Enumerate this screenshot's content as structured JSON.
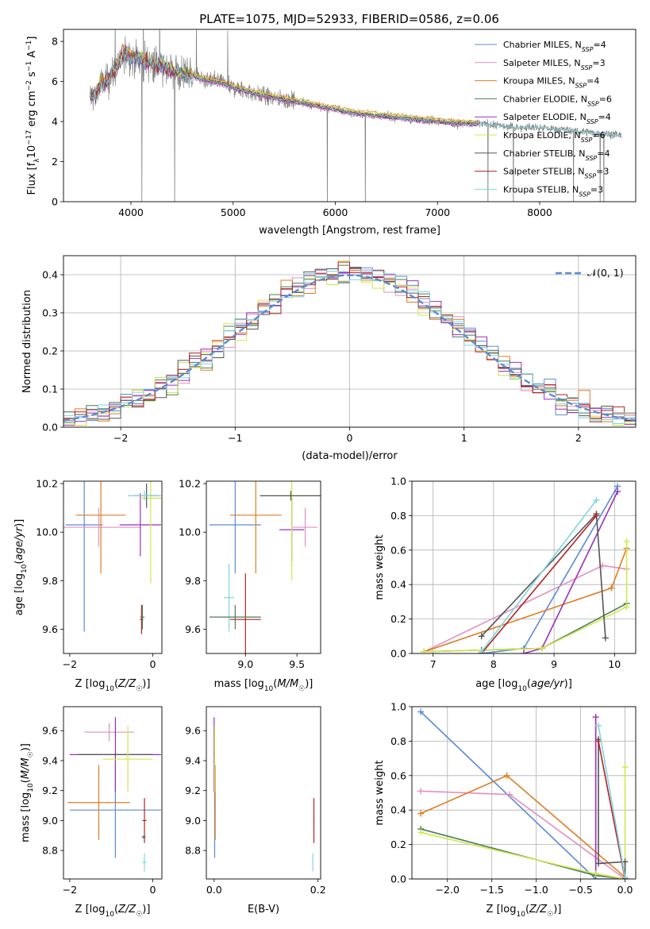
{
  "figure_title": "PLATE=1075, MJD=52933, FIBERID=0586, z=0.06",
  "models": [
    {
      "name": "Chabrier MILES",
      "nssp": "4",
      "color": "#5b8bd6"
    },
    {
      "name": "Salpeter MILES",
      "nssp": "3",
      "color": "#e38fbf"
    },
    {
      "name": "Kroupa MILES",
      "nssp": "4",
      "color": "#e07c22"
    },
    {
      "name": "Chabrier ELODIE",
      "nssp": "6",
      "color": "#4a7c59"
    },
    {
      "name": "Salpeter ELODIE",
      "nssp": "4",
      "color": "#9b30b8"
    },
    {
      "name": "Kroupa ELODIE",
      "nssp": "6",
      "color": "#cfe84a"
    },
    {
      "name": "Chabrier STELIB",
      "nssp": "4",
      "color": "#555555"
    },
    {
      "name": "Salpeter STELIB",
      "nssp": "3",
      "color": "#b22222"
    },
    {
      "name": "Kroupa STELIB",
      "nssp": "3",
      "color": "#7fd6e0"
    }
  ],
  "chart_data": [
    {
      "type": "line",
      "id": "spectrum",
      "xlabel": "wavelength [Angstrom, rest frame]",
      "ylabel": "Flux [f_λ 10^-17 erg cm^-2 s^-1 A^-1]",
      "xlim": [
        3340,
        8940
      ],
      "ylim": [
        0,
        8.6
      ],
      "xticks": [
        4000,
        5000,
        6000,
        7000,
        8000
      ],
      "yticks": [
        0,
        2,
        4,
        6,
        8
      ],
      "legend_position": "top-right",
      "data_color": "#808080",
      "continuum": {
        "x": [
          3600,
          3650,
          3700,
          3750,
          3800,
          3850,
          3900,
          3950,
          4000,
          4100,
          4200,
          4300,
          4400,
          4500,
          4600,
          4700,
          4800,
          4900,
          5000,
          5200,
          5400,
          5600,
          5800,
          6000,
          6200,
          6400,
          6600,
          6800,
          7000,
          7200,
          7400,
          7600,
          7800,
          8000,
          8200,
          8400,
          8600,
          8800
        ],
        "y": [
          5.3,
          5.3,
          5.8,
          5.9,
          6.3,
          6.6,
          7.1,
          7.5,
          7.2,
          7.1,
          6.9,
          6.8,
          6.5,
          6.4,
          6.3,
          6.1,
          6.0,
          5.9,
          5.7,
          5.4,
          5.2,
          5.0,
          4.8,
          4.6,
          4.4,
          4.3,
          4.2,
          4.1,
          4.0,
          3.9,
          3.9,
          3.8,
          3.7,
          3.7,
          3.6,
          3.5,
          3.4,
          3.3
        ]
      },
      "model_spectrum_xrange": [
        3600,
        8800
      ],
      "model_spectrum_color": "#7fd6e0"
    },
    {
      "type": "histogram",
      "id": "residuals",
      "xlabel": "(data-model)/error",
      "ylabel": "Normed distribution",
      "xlim": [
        -2.5,
        2.5
      ],
      "ylim": [
        0,
        0.45
      ],
      "xticks": [
        -2,
        -1,
        0,
        1,
        2
      ],
      "yticks": [
        0.0,
        0.1,
        0.2,
        0.3,
        0.4
      ],
      "grid": true,
      "legend": "𝒩(0, 1)",
      "legend_position": "top-right",
      "normal_curve_color": "#5b8bd6",
      "bin_width": 0.1
    },
    {
      "type": "errorbar",
      "id": "age_vs_Z",
      "xlabel": "Z [log10(Z/Z☉)]",
      "ylabel": "age [log10(age/yr)]",
      "xlim": [
        -2.15,
        0.22
      ],
      "ylim": [
        9.5,
        10.21
      ],
      "xticks": [
        -2,
        0
      ],
      "yticks": [
        9.6,
        9.8,
        10.0,
        10.2
      ],
      "points": [
        {
          "model": "Chabrier MILES",
          "x": -1.65,
          "xerr": 0.45,
          "y": 10.03,
          "yerr": 0.44
        },
        {
          "model": "Salpeter MILES",
          "x": -1.3,
          "xerr": 1.0,
          "y": 10.02,
          "yerr": 0.08
        },
        {
          "model": "Kroupa MILES",
          "x": -1.25,
          "xerr": 0.6,
          "y": 10.07,
          "yerr": 0.24
        },
        {
          "model": "Salpeter ELODIE",
          "x": -0.3,
          "xerr": 0.5,
          "y": 10.03,
          "yerr": 0.13
        },
        {
          "model": "Kroupa ELODIE",
          "x": -0.05,
          "xerr": 0.25,
          "y": 10.14,
          "yerr": 0.35
        },
        {
          "model": "Chabrier STELIB",
          "x": -0.15,
          "xerr": 0.3,
          "y": 10.15,
          "yerr": 0.05
        },
        {
          "model": "Kroupa STELIB",
          "x": -0.2,
          "xerr": 0.4,
          "y": 10.15,
          "yerr": 0.02
        },
        {
          "model": "Salpeter STELIB",
          "x": -0.27,
          "xerr": 0.04,
          "y": 9.64,
          "yerr": 0.06
        },
        {
          "model": "Chabrier ELODIE",
          "x": -0.25,
          "xerr": 0.05,
          "y": 9.65,
          "yerr": 0.05
        }
      ]
    },
    {
      "type": "errorbar",
      "id": "age_vs_mass",
      "xlabel": "mass [log10(M/M☉)]",
      "ylabel": "",
      "xlim": [
        8.62,
        9.73
      ],
      "ylim": [
        9.5,
        10.21
      ],
      "xticks": [
        9.0,
        9.5
      ],
      "yticks": [
        9.6,
        9.8,
        10.0,
        10.2
      ],
      "points": [
        {
          "model": "Chabrier MILES",
          "x": 8.9,
          "xerr": 0.25,
          "y": 10.03,
          "yerr": 0.2
        },
        {
          "model": "Kroupa MILES",
          "x": 9.1,
          "xerr": 0.25,
          "y": 10.07,
          "yerr": 0.24
        },
        {
          "model": "Salpeter MILES",
          "x": 9.58,
          "xerr": 0.12,
          "y": 10.02,
          "yerr": 0.08
        },
        {
          "model": "Salpeter ELODIE",
          "x": 9.45,
          "xerr": 0.12,
          "y": 10.01,
          "yerr": 0.13
        },
        {
          "model": "Kroupa ELODIE",
          "x": 9.45,
          "xerr": 0.3,
          "y": 10.15,
          "yerr": 0.35
        },
        {
          "model": "Chabrier STELIB",
          "x": 9.44,
          "xerr": 0.3,
          "y": 10.15,
          "yerr": 0.02
        },
        {
          "model": "Kroupa STELIB",
          "x": 8.84,
          "xerr": 0.05,
          "y": 9.73,
          "yerr": 0.14
        },
        {
          "model": "Salpeter STELIB",
          "x": 9.0,
          "xerr": 0.15,
          "y": 9.64,
          "yerr": 0.19
        },
        {
          "model": "Chabrier ELODIE",
          "x": 8.9,
          "xerr": 0.25,
          "y": 9.65,
          "yerr": 0.05
        }
      ]
    },
    {
      "type": "line",
      "id": "massweight_vs_age",
      "xlabel": "age [log10(age/yr)]",
      "ylabel": "mass weight",
      "xlim": [
        6.65,
        10.35
      ],
      "ylim": [
        0,
        1.0
      ],
      "xticks": [
        7,
        8,
        9,
        10
      ],
      "yticks": [
        0.0,
        0.2,
        0.4,
        0.6,
        0.8,
        1.0
      ],
      "grid": true,
      "series": [
        {
          "model": "Chabrier MILES",
          "x": [
            7.8,
            8.5,
            10.05
          ],
          "y": [
            0.0,
            0.03,
            0.97
          ]
        },
        {
          "model": "Salpeter MILES",
          "x": [
            6.85,
            9.8,
            10.2
          ],
          "y": [
            0.01,
            0.51,
            0.49
          ]
        },
        {
          "model": "Kroupa MILES",
          "x": [
            6.85,
            9.95,
            10.2
          ],
          "y": [
            0.01,
            0.38,
            0.61
          ]
        },
        {
          "model": "Chabrier ELODIE",
          "x": [
            6.85,
            7.8,
            8.8,
            10.2
          ],
          "y": [
            0.01,
            0.02,
            0.03,
            0.29
          ]
        },
        {
          "model": "Salpeter ELODIE",
          "x": [
            8.5,
            8.8,
            10.05
          ],
          "y": [
            0.0,
            0.03,
            0.94
          ]
        },
        {
          "model": "Kroupa ELODIE",
          "x": [
            6.85,
            8.8,
            10.2,
            10.2
          ],
          "y": [
            0.01,
            0.03,
            0.27,
            0.65
          ]
        },
        {
          "model": "Chabrier STELIB",
          "x": [
            7.8,
            9.7,
            9.85
          ],
          "y": [
            0.1,
            0.81,
            0.09
          ]
        },
        {
          "model": "Salpeter STELIB",
          "x": [
            7.8,
            9.7
          ],
          "y": [
            0.0,
            0.8
          ]
        },
        {
          "model": "Kroupa STELIB",
          "x": [
            7.8,
            9.7
          ],
          "y": [
            0.01,
            0.89
          ]
        }
      ]
    },
    {
      "type": "errorbar",
      "id": "mass_vs_Z",
      "xlabel": "Z [log10(Z/Z☉)]",
      "ylabel": "mass [log10(M/M☉)]",
      "xlim": [
        -2.15,
        0.22
      ],
      "ylim": [
        8.61,
        9.76
      ],
      "xticks": [
        -2,
        0
      ],
      "yticks": [
        8.8,
        9.0,
        9.2,
        9.4,
        9.6
      ],
      "points": [
        {
          "model": "Salpeter MILES",
          "x": -1.05,
          "xerr": 0.6,
          "y": 9.59,
          "yerr": 0.06
        },
        {
          "model": "Chabrier MILES",
          "x": -0.9,
          "xerr": 1.1,
          "y": 9.07,
          "yerr": 0.32
        },
        {
          "model": "Kroupa MILES",
          "x": -1.3,
          "xerr": 0.75,
          "y": 9.12,
          "yerr": 0.25
        },
        {
          "model": "Salpeter ELODIE",
          "x": -0.9,
          "xerr": 1.1,
          "y": 9.44,
          "yerr": 0.25
        },
        {
          "model": "Chabrier STELIB",
          "x": -0.9,
          "xerr": 0.9,
          "y": 9.44,
          "yerr": 0.01
        },
        {
          "model": "Kroupa ELODIE",
          "x": -0.6,
          "xerr": 0.6,
          "y": 9.41,
          "yerr": 0.22
        },
        {
          "model": "Kroupa STELIB",
          "x": -0.2,
          "xerr": 0.05,
          "y": 8.72,
          "yerr": 0.06
        },
        {
          "model": "Salpeter STELIB",
          "x": -0.2,
          "xerr": 0.05,
          "y": 9.0,
          "yerr": 0.15
        },
        {
          "model": "Chabrier ELODIE",
          "x": -0.22,
          "xerr": 0.05,
          "y": 8.89,
          "yerr": 0.01
        }
      ]
    },
    {
      "type": "errorbar",
      "id": "mass_vs_EBV",
      "xlabel": "E(B-V)",
      "ylabel": "",
      "xlim": [
        -0.015,
        0.205
      ],
      "ylim": [
        8.61,
        9.76
      ],
      "xticks": [
        0.0,
        0.2
      ],
      "yticks": [
        8.8,
        9.0,
        9.2,
        9.4,
        9.6
      ],
      "points": [
        {
          "model": "Chabrier MILES",
          "x": 0.001,
          "xerr": 0.001,
          "y": 9.07,
          "yerr": 0.32
        },
        {
          "model": "Kroupa MILES",
          "x": 0.002,
          "xerr": 0.001,
          "y": 9.12,
          "yerr": 0.25
        },
        {
          "model": "Salpeter ELODIE",
          "x": 0.0,
          "xerr": 0.001,
          "y": 9.44,
          "yerr": 0.25
        },
        {
          "model": "Kroupa ELODIE",
          "x": 0.001,
          "xerr": 0.001,
          "y": 9.41,
          "yerr": 0.22
        },
        {
          "model": "Salpeter STELIB",
          "x": 0.192,
          "xerr": 0.001,
          "y": 9.0,
          "yerr": 0.15
        },
        {
          "model": "Kroupa STELIB",
          "x": 0.19,
          "xerr": 0.001,
          "y": 8.72,
          "yerr": 0.06
        }
      ]
    },
    {
      "type": "line",
      "id": "massweight_vs_Z",
      "xlabel": "Z [log10(Z/Z☉)]",
      "ylabel": "mass weight",
      "xlim": [
        -2.4,
        0.12
      ],
      "ylim": [
        0,
        1.0
      ],
      "xticks": [
        -2.0,
        -1.5,
        -1.0,
        -0.5,
        0.0
      ],
      "yticks": [
        0.0,
        0.2,
        0.4,
        0.6,
        0.8,
        1.0
      ],
      "grid": true,
      "series": [
        {
          "model": "Chabrier MILES",
          "x": [
            -2.3,
            -0.33,
            0.0
          ],
          "y": [
            0.97,
            0.0,
            0.0
          ]
        },
        {
          "model": "Salpeter MILES",
          "x": [
            -2.3,
            -1.3,
            0.0
          ],
          "y": [
            0.51,
            0.49,
            0.0
          ]
        },
        {
          "model": "Kroupa MILES",
          "x": [
            -2.3,
            -1.33,
            0.0
          ],
          "y": [
            0.38,
            0.6,
            0.01
          ]
        },
        {
          "model": "Chabrier ELODIE",
          "x": [
            -2.3,
            -0.33,
            0.0
          ],
          "y": [
            0.29,
            0.02,
            0.0
          ]
        },
        {
          "model": "Salpeter ELODIE",
          "x": [
            -0.33,
            -0.33,
            0.0
          ],
          "y": [
            0.94,
            0.03,
            0.0
          ]
        },
        {
          "model": "Kroupa ELODIE",
          "x": [
            -2.3,
            -0.33,
            0.0,
            0.0
          ],
          "y": [
            0.27,
            0.03,
            0.0,
            0.65
          ]
        },
        {
          "model": "Chabrier STELIB",
          "x": [
            -0.3,
            -0.3,
            0.0,
            0.0
          ],
          "y": [
            0.81,
            0.09,
            0.1,
            0.0
          ]
        },
        {
          "model": "Salpeter STELIB",
          "x": [
            -0.3,
            0.0
          ],
          "y": [
            0.8,
            0.0
          ]
        },
        {
          "model": "Kroupa STELIB",
          "x": [
            -0.3,
            0.0
          ],
          "y": [
            0.89,
            0.01
          ]
        }
      ]
    }
  ]
}
